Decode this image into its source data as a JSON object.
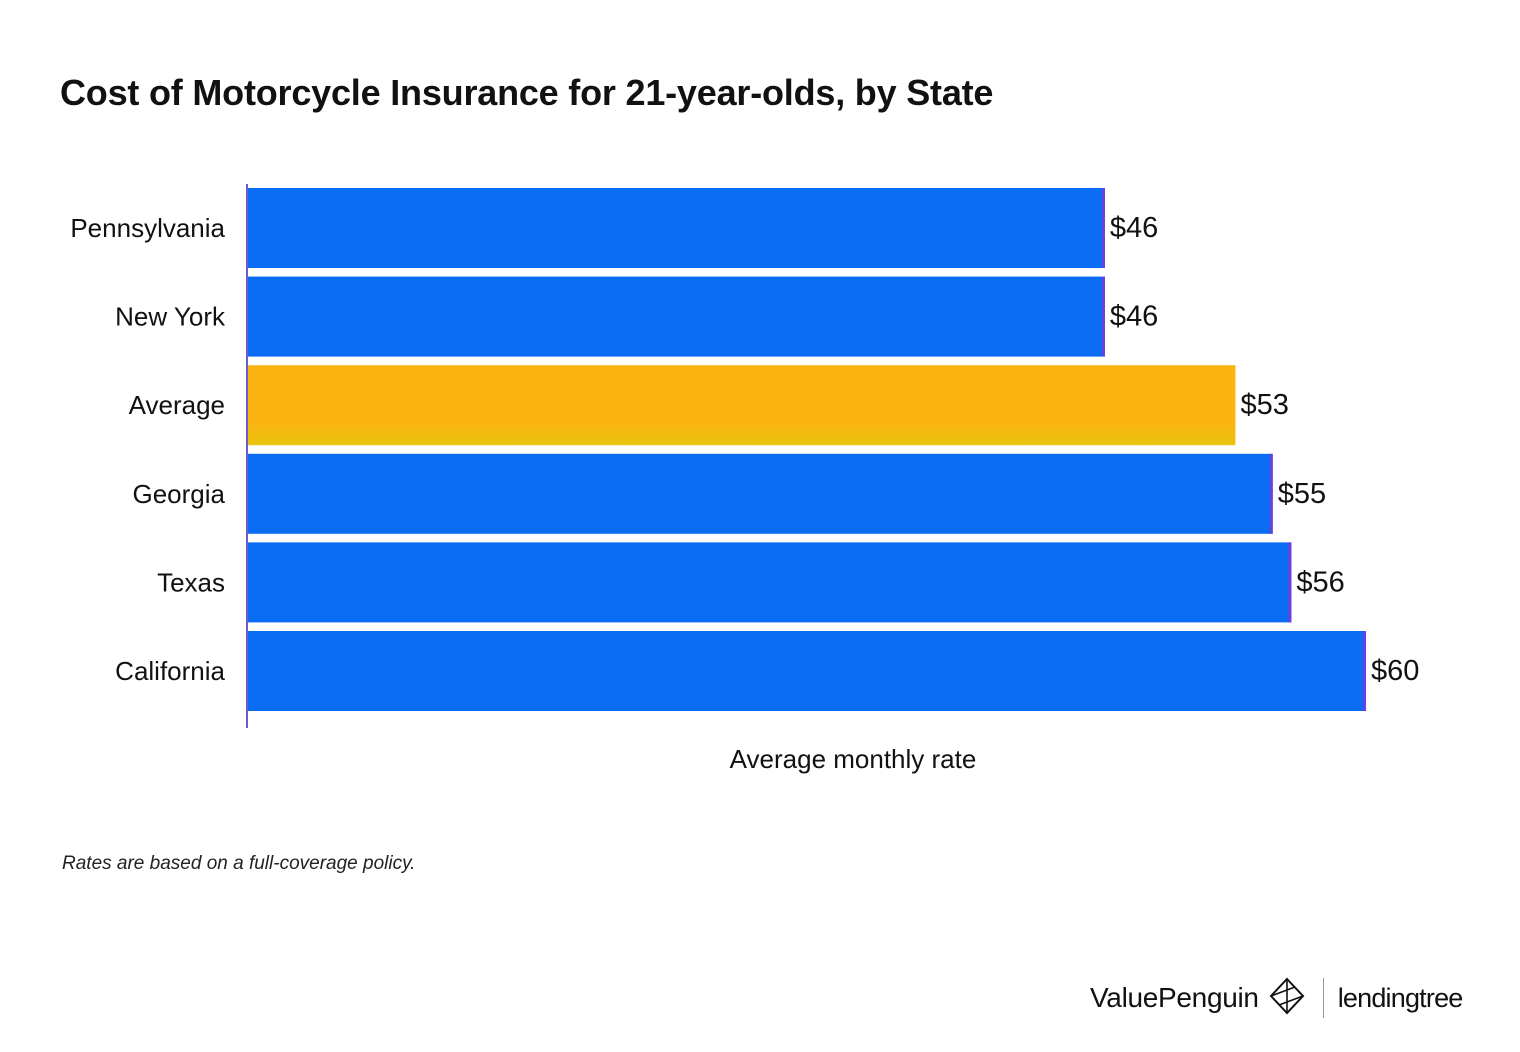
{
  "chart_data": {
    "type": "bar",
    "orientation": "horizontal",
    "title": "Cost of Motorcycle Insurance for 21-year-olds, by State",
    "xlabel": "Average monthly rate",
    "ylabel": "",
    "categories": [
      "Pennsylvania",
      "New York",
      "Average",
      "Georgia",
      "Texas",
      "California"
    ],
    "values": [
      46,
      46,
      53,
      55,
      56,
      60
    ],
    "value_labels": [
      "$46",
      "$46",
      "$53",
      "$55",
      "$56",
      "$60"
    ],
    "highlight": [
      "blue",
      "blue",
      "gold",
      "blue",
      "blue",
      "blue"
    ],
    "xlim": [
      0,
      60
    ],
    "grid": false,
    "legend": "none",
    "colors": {
      "blue": "#0A6CF2",
      "gold": "#FBB513",
      "gold_bottom": "#E8C40A",
      "edge": "#6A3FE0",
      "axis": "#6A5ACD"
    }
  },
  "footnote": "Rates are based on a full-coverage policy.",
  "branding": {
    "valuepenguin": "ValuePenguin",
    "lendingtree": "lendingtree",
    "valuepenguin_logo_icon": "valuepenguin-diamond-icon"
  }
}
